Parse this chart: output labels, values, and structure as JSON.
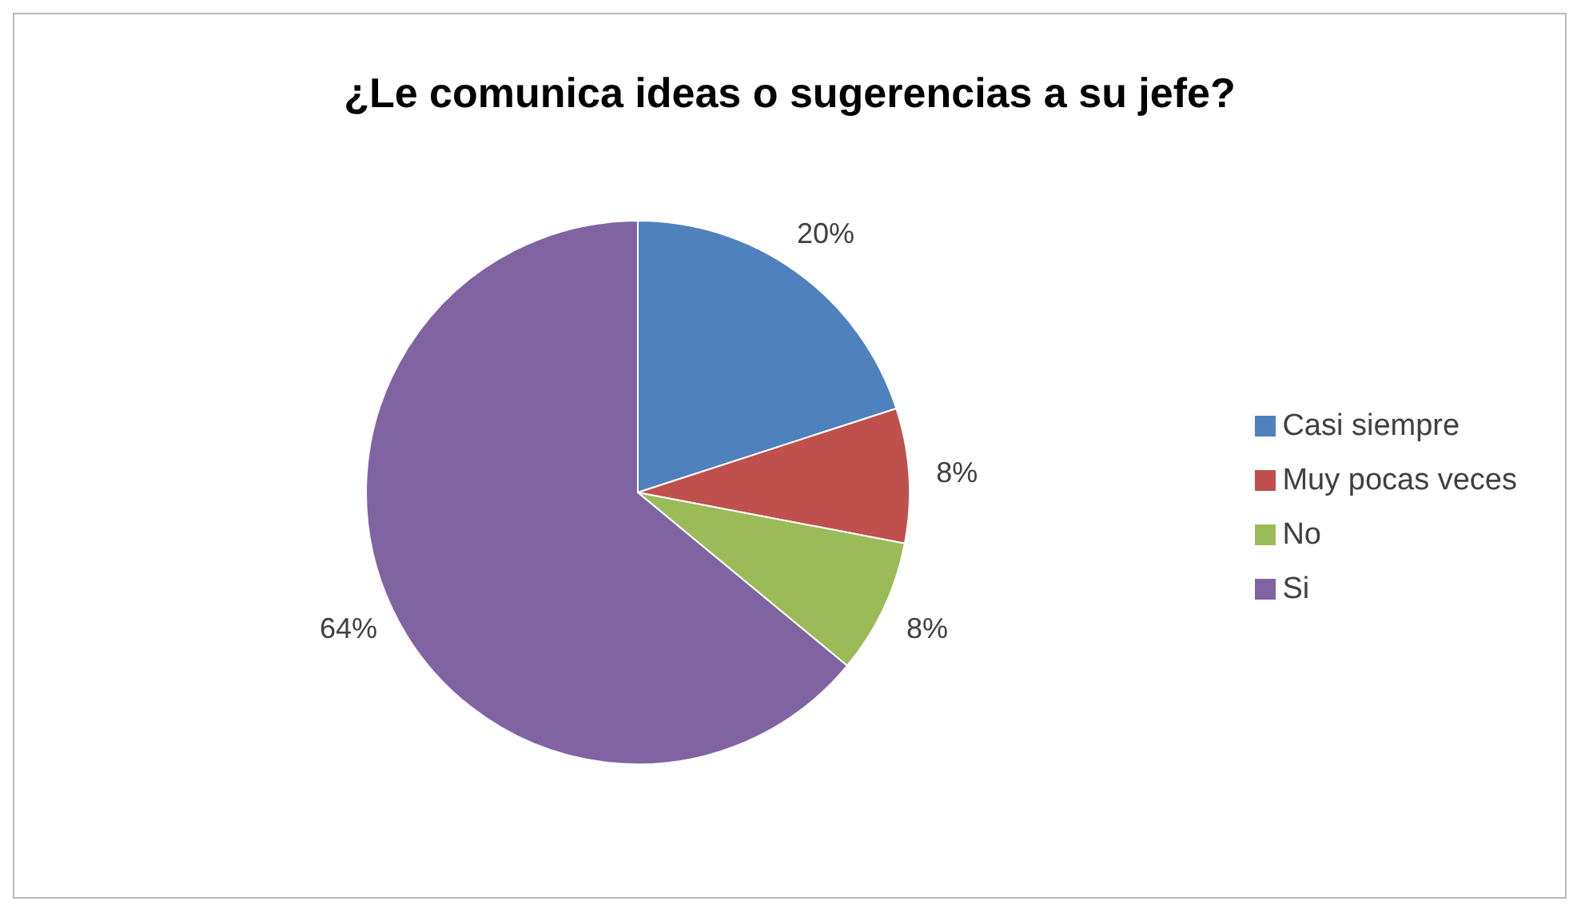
{
  "chart_data": {
    "type": "pie",
    "title": "¿Le comunica ideas o sugerencias a su jefe?",
    "categories": [
      "Casi siempre",
      "Muy pocas veces",
      "No",
      "Si"
    ],
    "values": [
      20,
      8,
      8,
      64
    ],
    "colors": [
      "#4f81bd",
      "#c0504d",
      "#9bbb59",
      "#8064a2"
    ],
    "value_labels": [
      "20%",
      "8%",
      "8%",
      "64%"
    ],
    "legend": "right"
  }
}
